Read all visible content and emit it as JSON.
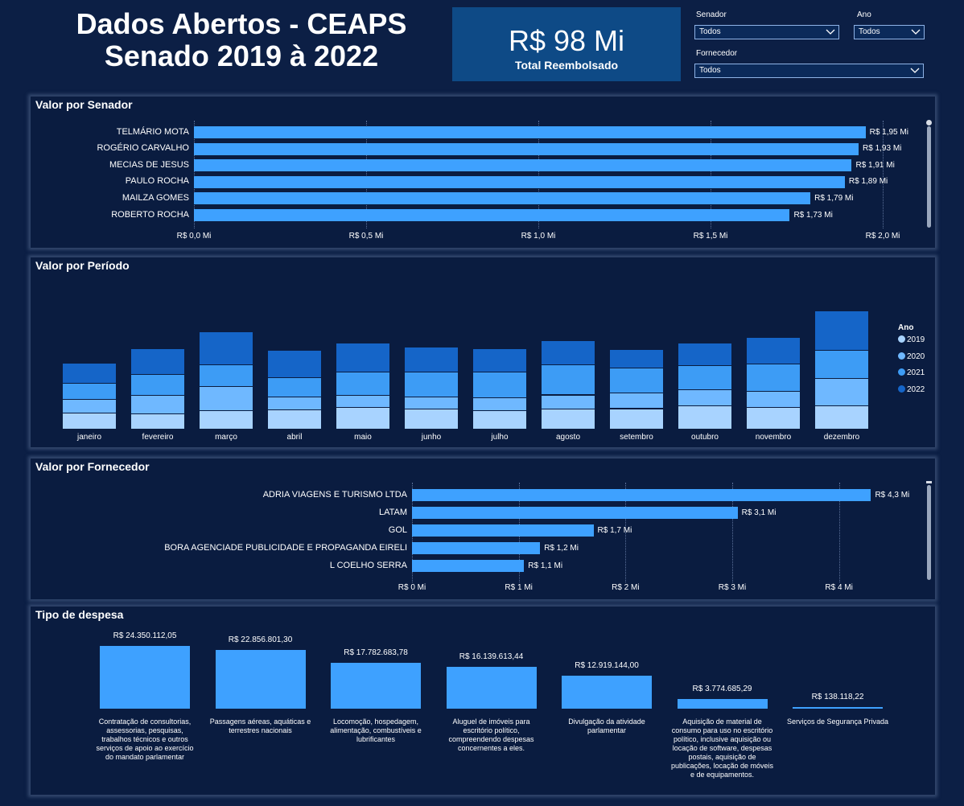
{
  "header": {
    "title_line1": "Dados Abertos - CEAPS",
    "title_line2": "Senado 2019 à 2022",
    "kpi_value": "R$ 98 Mi",
    "kpi_label": "Total Reembolsado"
  },
  "filters": {
    "senador": {
      "label": "Senador",
      "value": "Todos"
    },
    "ano": {
      "label": "Ano",
      "value": "Todos"
    },
    "fornecedor": {
      "label": "Fornecedor",
      "value": "Todos"
    }
  },
  "colors": {
    "bar": "#3ea1ff",
    "year_2019": "#a8d3ff",
    "year_2020": "#6fb8ff",
    "year_2021": "#3d9cf5",
    "year_2022": "#1565c8"
  },
  "panels": {
    "senador_title": "Valor por Senador",
    "periodo_title": "Valor por Período",
    "fornecedor_title": "Valor por Fornecedor",
    "tipo_title": "Tipo de despesa"
  },
  "chart_data": [
    {
      "type": "bar",
      "orientation": "horizontal",
      "title": "Valor por Senador",
      "categories": [
        "TELMÁRIO MOTA",
        "ROGÉRIO CARVALHO",
        "MECIAS DE JESUS",
        "PAULO ROCHA",
        "MAILZA GOMES",
        "ROBERTO ROCHA"
      ],
      "values": [
        1.95,
        1.93,
        1.91,
        1.89,
        1.79,
        1.73
      ],
      "data_labels": [
        "R$ 1,95 Mi",
        "R$ 1,93 Mi",
        "R$ 1,91 Mi",
        "R$ 1,89 Mi",
        "R$ 1,79 Mi",
        "R$ 1,73 Mi"
      ],
      "xlim": [
        0,
        2.0
      ],
      "x_ticks": [
        0,
        0.5,
        1.0,
        1.5,
        2.0
      ],
      "x_tick_labels": [
        "R$ 0,0 Mi",
        "R$ 0,5 Mi",
        "R$ 1,0 Mi",
        "R$ 1,5 Mi",
        "R$ 2,0 Mi"
      ],
      "unit": "R$ Mi",
      "grid": true
    },
    {
      "type": "bar",
      "stacked": true,
      "title": "Valor por Período",
      "categories": [
        "janeiro",
        "fevereiro",
        "março",
        "abril",
        "maio",
        "junho",
        "julho",
        "agosto",
        "setembro",
        "outubro",
        "novembro",
        "dezembro"
      ],
      "legend_title": "Ano",
      "legend_position": "right",
      "series": [
        {
          "name": "2019",
          "values": [
            2.6,
            2.5,
            3.0,
            3.1,
            3.5,
            3.2,
            3.0,
            3.2,
            3.3,
            3.8,
            3.5,
            3.7
          ]
        },
        {
          "name": "2020",
          "values": [
            2.2,
            2.9,
            3.9,
            2.1,
            1.9,
            2.0,
            2.1,
            2.3,
            2.5,
            2.6,
            2.6,
            4.4
          ]
        },
        {
          "name": "2021",
          "values": [
            2.6,
            3.4,
            3.5,
            3.1,
            3.8,
            4.0,
            4.1,
            4.8,
            4.0,
            3.8,
            4.4,
            4.6
          ]
        },
        {
          "name": "2022",
          "values": [
            3.2,
            4.2,
            5.3,
            4.4,
            4.7,
            4.0,
            3.7,
            4.0,
            3.0,
            3.6,
            4.2,
            6.3
          ]
        }
      ],
      "ylim": [
        0,
        22
      ]
    },
    {
      "type": "bar",
      "orientation": "horizontal",
      "title": "Valor por Fornecedor",
      "categories": [
        "ADRIA VIAGENS E TURISMO LTDA",
        "LATAM",
        "GOL",
        "BORA AGENCIADE PUBLICIDADE E PROPAGANDA EIRELI",
        "L COELHO SERRA"
      ],
      "values": [
        4.3,
        3.05,
        1.7,
        1.2,
        1.05
      ],
      "data_labels": [
        "R$ 4,3 Mi",
        "R$ 3,1 Mi",
        "R$ 1,7 Mi",
        "R$ 1,2 Mi",
        "R$ 1,1 Mi"
      ],
      "xlim": [
        0,
        4.5
      ],
      "x_ticks": [
        0,
        1,
        2,
        3,
        4
      ],
      "x_tick_labels": [
        "R$ 0 Mi",
        "R$ 1 Mi",
        "R$ 2 Mi",
        "R$ 3 Mi",
        "R$ 4 Mi"
      ],
      "unit": "R$ Mi",
      "grid": true
    },
    {
      "type": "bar",
      "title": "Tipo de despesa",
      "categories": [
        "Contratação de consultorias, assessorias, pesquisas, trabalhos técnicos e outros serviços de apoio ao exercício do mandato parlamentar",
        "Passagens aéreas, aquáticas e terrestres nacionais",
        "Locomoção, hospedagem, alimentação, combustíveis e lubrificantes",
        "Aluguel de imóveis para escritório político, compreendendo despesas concernentes a eles.",
        "Divulgação da atividade parlamentar",
        "Aquisição de material de consumo para uso no escritório político, inclusive aquisição ou locação de software, despesas postais, aquisição de publicações, locação de móveis e de equipamentos.",
        "Serviços de Segurança Privada"
      ],
      "values": [
        24350112.05,
        22856801.3,
        17782683.78,
        16139613.44,
        12919144.0,
        3774685.29,
        138118.22
      ],
      "data_labels": [
        "R$ 24.350.112,05",
        "R$ 22.856.801,30",
        "R$ 17.782.683,78",
        "R$ 16.139.613,44",
        "R$ 12.919.144,00",
        "R$ 3.774.685,29",
        "R$ 138.118,22"
      ],
      "ylim": [
        0,
        24350112.05
      ]
    }
  ]
}
